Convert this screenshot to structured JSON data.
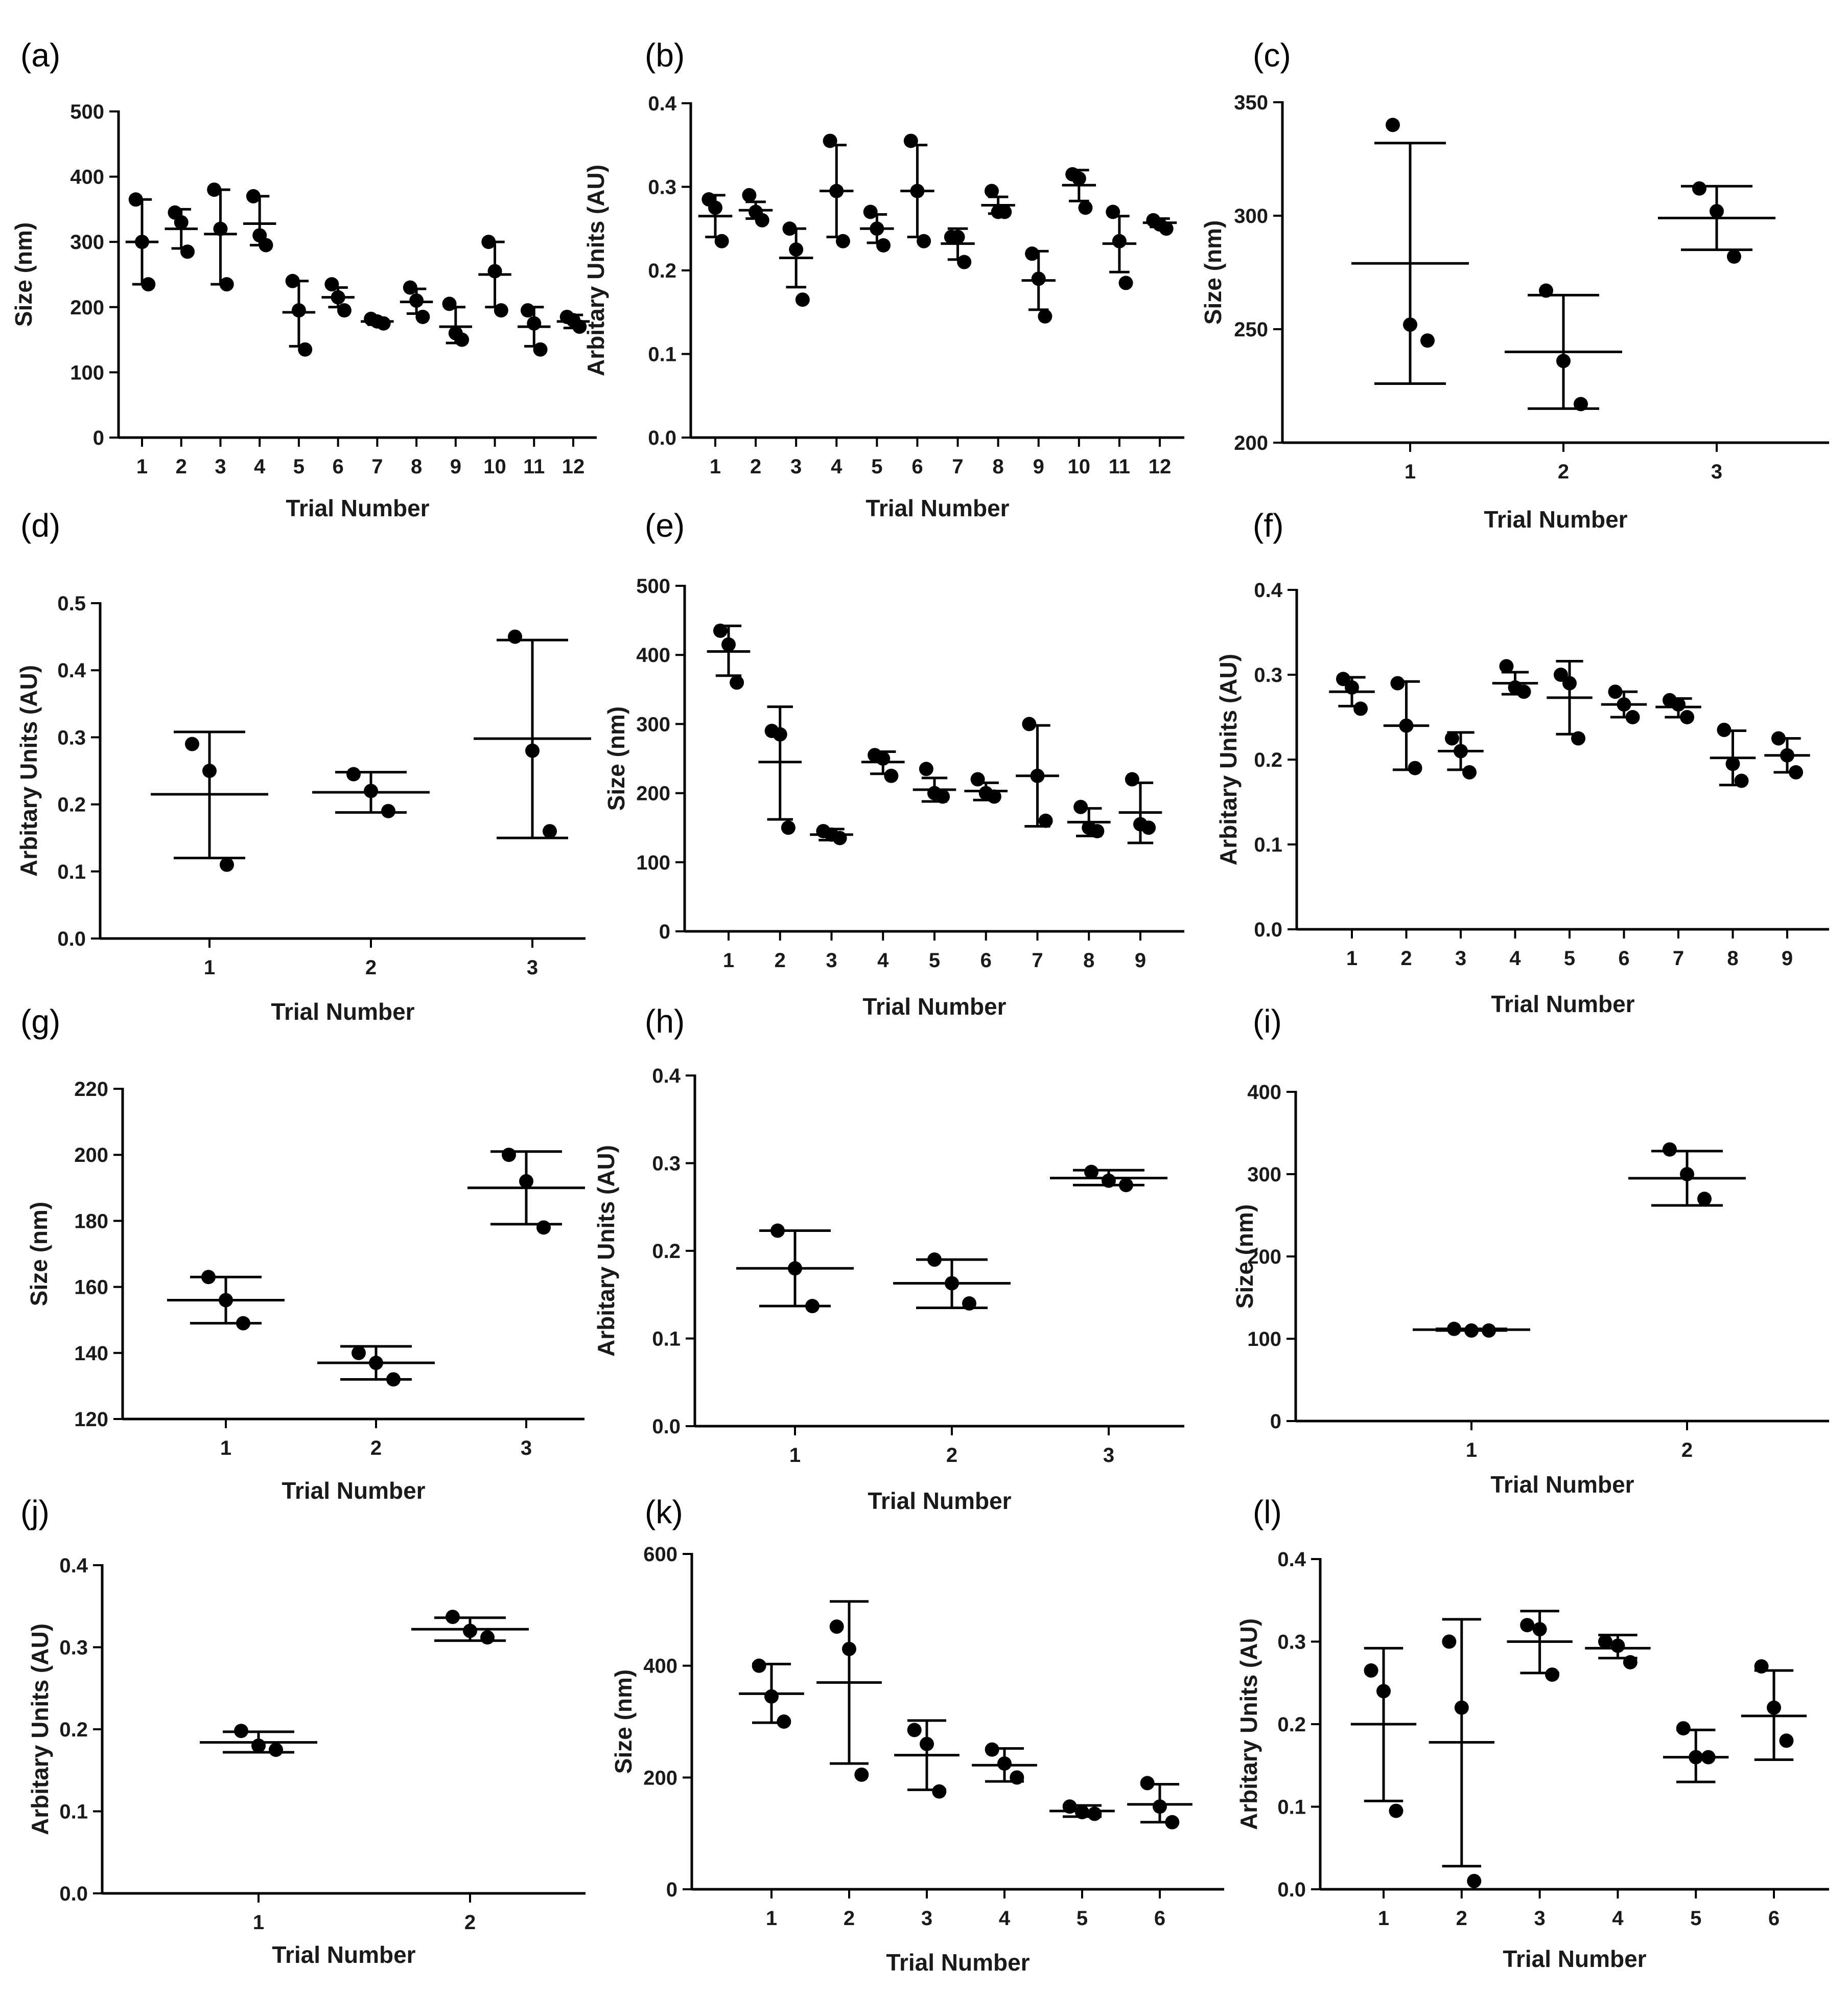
{
  "figure": {
    "background": "#ffffff",
    "ink_color": "#000000",
    "x_axis_title": "Trial Number"
  },
  "chart_data": [
    {
      "panel": "(a)",
      "type": "scatter",
      "xlabel": "Trial Number",
      "ylabel": "Size (nm)",
      "ylim": [
        0,
        500
      ],
      "yticks": [
        0,
        100,
        200,
        300,
        400,
        500
      ],
      "ytick_labels": [
        "0",
        "100",
        "200",
        "300",
        "400",
        "500"
      ],
      "categories": [
        "1",
        "2",
        "3",
        "4",
        "5",
        "6",
        "7",
        "8",
        "9",
        "10",
        "11",
        "12"
      ],
      "points": [
        [
          365,
          300,
          235
        ],
        [
          345,
          330,
          285
        ],
        [
          380,
          320,
          235
        ],
        [
          370,
          310,
          295
        ],
        [
          240,
          195,
          135
        ],
        [
          235,
          215,
          195
        ],
        [
          182,
          178,
          175
        ],
        [
          230,
          210,
          185
        ],
        [
          205,
          160,
          150
        ],
        [
          300,
          255,
          195
        ],
        [
          195,
          175,
          135
        ],
        [
          185,
          180,
          170
        ]
      ],
      "mean": [
        300,
        320,
        312,
        328,
        192,
        215,
        178,
        208,
        170,
        250,
        170,
        178
      ],
      "err_low": [
        235,
        290,
        235,
        295,
        140,
        200,
        173,
        190,
        145,
        200,
        140,
        168
      ],
      "err_high": [
        365,
        350,
        380,
        370,
        240,
        230,
        183,
        228,
        200,
        300,
        200,
        188
      ]
    },
    {
      "panel": "(b)",
      "type": "scatter",
      "xlabel": "Trial Number",
      "ylabel": "Arbitary Units (AU)",
      "ylim": [
        0,
        0.4
      ],
      "yticks": [
        0,
        0.1,
        0.2,
        0.3,
        0.4
      ],
      "ytick_labels": [
        "0.0",
        "0.1",
        "0.2",
        "0.3",
        "0.4"
      ],
      "categories": [
        "1",
        "2",
        "3",
        "4",
        "5",
        "6",
        "7",
        "8",
        "9",
        "10",
        "11",
        "12"
      ],
      "points": [
        [
          0.285,
          0.275,
          0.235
        ],
        [
          0.29,
          0.27,
          0.26
        ],
        [
          0.25,
          0.225,
          0.165
        ],
        [
          0.355,
          0.295,
          0.235
        ],
        [
          0.27,
          0.25,
          0.23
        ],
        [
          0.355,
          0.295,
          0.235
        ],
        [
          0.24,
          0.24,
          0.21
        ],
        [
          0.295,
          0.27,
          0.27
        ],
        [
          0.22,
          0.19,
          0.145
        ],
        [
          0.315,
          0.31,
          0.275
        ],
        [
          0.27,
          0.235,
          0.185
        ],
        [
          0.26,
          0.255,
          0.25
        ]
      ],
      "mean": [
        0.265,
        0.272,
        0.215,
        0.295,
        0.25,
        0.295,
        0.232,
        0.278,
        0.188,
        0.302,
        0.232,
        0.257
      ],
      "err_low": [
        0.24,
        0.262,
        0.18,
        0.24,
        0.233,
        0.24,
        0.213,
        0.268,
        0.153,
        0.283,
        0.198,
        0.252
      ],
      "err_high": [
        0.29,
        0.282,
        0.25,
        0.35,
        0.267,
        0.35,
        0.25,
        0.288,
        0.223,
        0.32,
        0.265,
        0.262
      ]
    },
    {
      "panel": "(c)",
      "type": "scatter",
      "xlabel": "Trial Number",
      "ylabel": "Size (nm)",
      "ylim": [
        200,
        350
      ],
      "yticks": [
        200,
        250,
        300,
        350
      ],
      "ytick_labels": [
        "200",
        "250",
        "300",
        "350"
      ],
      "categories": [
        "1",
        "2",
        "3"
      ],
      "points": [
        [
          340,
          252,
          245
        ],
        [
          267,
          236,
          217
        ],
        [
          312,
          302,
          282
        ]
      ],
      "mean": [
        279,
        240,
        299
      ],
      "err_low": [
        226,
        215,
        285
      ],
      "err_high": [
        332,
        265,
        313
      ]
    },
    {
      "panel": "(d)",
      "type": "scatter",
      "xlabel": "Trial Number",
      "ylabel": "Arbitary Units (AU)",
      "ylim": [
        0,
        0.5
      ],
      "yticks": [
        0,
        0.1,
        0.2,
        0.3,
        0.4,
        0.5
      ],
      "ytick_labels": [
        "0.0",
        "0.1",
        "0.2",
        "0.3",
        "0.4",
        "0.5"
      ],
      "categories": [
        "1",
        "2",
        "3"
      ],
      "points": [
        [
          0.29,
          0.25,
          0.11
        ],
        [
          0.245,
          0.22,
          0.19
        ],
        [
          0.45,
          0.28,
          0.16
        ]
      ],
      "mean": [
        0.215,
        0.218,
        0.298
      ],
      "err_low": [
        0.12,
        0.188,
        0.15
      ],
      "err_high": [
        0.308,
        0.248,
        0.445
      ]
    },
    {
      "panel": "(e)",
      "type": "scatter",
      "xlabel": "Trial Number",
      "ylabel": "Size (nm)",
      "ylim": [
        0,
        500
      ],
      "yticks": [
        0,
        100,
        200,
        300,
        400,
        500
      ],
      "ytick_labels": [
        "0",
        "100",
        "200",
        "300",
        "400",
        "500"
      ],
      "categories": [
        "1",
        "2",
        "3",
        "4",
        "5",
        "6",
        "7",
        "8",
        "9"
      ],
      "points": [
        [
          435,
          415,
          360
        ],
        [
          290,
          285,
          150
        ],
        [
          145,
          140,
          135
        ],
        [
          255,
          250,
          225
        ],
        [
          235,
          200,
          195
        ],
        [
          220,
          200,
          195
        ],
        [
          300,
          225,
          160
        ],
        [
          180,
          150,
          145
        ],
        [
          220,
          155,
          150
        ]
      ],
      "mean": [
        405,
        245,
        140,
        245,
        205,
        203,
        225,
        158,
        172
      ],
      "err_low": [
        370,
        162,
        132,
        228,
        188,
        190,
        152,
        138,
        128
      ],
      "err_high": [
        442,
        325,
        148,
        260,
        222,
        215,
        298,
        178,
        215
      ]
    },
    {
      "panel": "(f)",
      "type": "scatter",
      "xlabel": "Trial Number",
      "ylabel": "Arbitary Units (AU)",
      "ylim": [
        0,
        0.4
      ],
      "yticks": [
        0,
        0.1,
        0.2,
        0.3,
        0.4
      ],
      "ytick_labels": [
        "0.0",
        "0.1",
        "0.2",
        "0.3",
        "0.4"
      ],
      "categories": [
        "1",
        "2",
        "3",
        "4",
        "5",
        "6",
        "7",
        "8",
        "9"
      ],
      "points": [
        [
          0.295,
          0.285,
          0.26
        ],
        [
          0.29,
          0.24,
          0.19
        ],
        [
          0.225,
          0.21,
          0.185
        ],
        [
          0.31,
          0.285,
          0.28
        ],
        [
          0.3,
          0.29,
          0.225
        ],
        [
          0.28,
          0.265,
          0.25
        ],
        [
          0.27,
          0.265,
          0.25
        ],
        [
          0.235,
          0.195,
          0.175
        ],
        [
          0.225,
          0.205,
          0.185
        ]
      ],
      "mean": [
        0.28,
        0.24,
        0.21,
        0.29,
        0.273,
        0.265,
        0.262,
        0.202,
        0.205
      ],
      "err_low": [
        0.263,
        0.188,
        0.188,
        0.277,
        0.23,
        0.25,
        0.25,
        0.17,
        0.185
      ],
      "err_high": [
        0.297,
        0.292,
        0.232,
        0.303,
        0.316,
        0.28,
        0.272,
        0.234,
        0.225
      ]
    },
    {
      "panel": "(g)",
      "type": "scatter",
      "xlabel": "Trial Number",
      "ylabel": "Size (nm)",
      "ylim": [
        120,
        220
      ],
      "yticks": [
        120,
        140,
        160,
        180,
        200,
        220
      ],
      "ytick_labels": [
        "120",
        "140",
        "160",
        "180",
        "200",
        "220"
      ],
      "categories": [
        "1",
        "2",
        "3"
      ],
      "points": [
        [
          163,
          156,
          149
        ],
        [
          140,
          137,
          132
        ],
        [
          200,
          192,
          178
        ]
      ],
      "mean": [
        156,
        137,
        190
      ],
      "err_low": [
        149,
        132,
        179
      ],
      "err_high": [
        163,
        142,
        201
      ]
    },
    {
      "panel": "(h)",
      "type": "scatter",
      "xlabel": "Trial Number",
      "ylabel": "Arbitary Units (AU)",
      "ylim": [
        0,
        0.4
      ],
      "yticks": [
        0,
        0.1,
        0.2,
        0.3,
        0.4
      ],
      "ytick_labels": [
        "0.0",
        "0.1",
        "0.2",
        "0.3",
        "0.4"
      ],
      "categories": [
        "1",
        "2",
        "3"
      ],
      "points": [
        [
          0.223,
          0.18,
          0.137
        ],
        [
          0.19,
          0.163,
          0.14
        ],
        [
          0.29,
          0.28,
          0.275
        ]
      ],
      "mean": [
        0.18,
        0.163,
        0.283
      ],
      "err_low": [
        0.137,
        0.135,
        0.275
      ],
      "err_high": [
        0.223,
        0.19,
        0.292
      ]
    },
    {
      "panel": "(i)",
      "type": "scatter",
      "xlabel": "Trial Number",
      "ylabel": "Size (nm)",
      "ylim": [
        0,
        400
      ],
      "yticks": [
        0,
        100,
        200,
        300,
        400
      ],
      "ytick_labels": [
        "0",
        "100",
        "200",
        "300",
        "400"
      ],
      "categories": [
        "1",
        "2"
      ],
      "points": [
        [
          112,
          110,
          110
        ],
        [
          330,
          300,
          270
        ]
      ],
      "mean": [
        111,
        295
      ],
      "err_low": [
        110,
        262
      ],
      "err_high": [
        112,
        328
      ]
    },
    {
      "panel": "(j)",
      "type": "scatter",
      "xlabel": "Trial Number",
      "ylabel": "Arbitary Units (AU)",
      "ylim": [
        0,
        0.4
      ],
      "yticks": [
        0,
        0.1,
        0.2,
        0.3,
        0.4
      ],
      "ytick_labels": [
        "0.0",
        "0.1",
        "0.2",
        "0.3",
        "0.4"
      ],
      "categories": [
        "1",
        "2"
      ],
      "points": [
        [
          0.198,
          0.18,
          0.175
        ],
        [
          0.337,
          0.32,
          0.312
        ]
      ],
      "mean": [
        0.184,
        0.322
      ],
      "err_low": [
        0.172,
        0.308
      ],
      "err_high": [
        0.197,
        0.336
      ]
    },
    {
      "panel": "(k)",
      "type": "scatter",
      "xlabel": "Trial Number",
      "ylabel": "Size (nm)",
      "ylim": [
        0,
        600
      ],
      "yticks": [
        0,
        200,
        400,
        600
      ],
      "ytick_labels": [
        "0",
        "200",
        "400",
        "600"
      ],
      "categories": [
        "1",
        "2",
        "3",
        "4",
        "5",
        "6"
      ],
      "points": [
        [
          400,
          345,
          300
        ],
        [
          470,
          430,
          205
        ],
        [
          285,
          260,
          175
        ],
        [
          250,
          225,
          200
        ],
        [
          148,
          138,
          135
        ],
        [
          190,
          148,
          120
        ]
      ],
      "mean": [
        350,
        370,
        240,
        222,
        140,
        152
      ],
      "err_low": [
        298,
        225,
        178,
        193,
        130,
        120
      ],
      "err_high": [
        403,
        515,
        302,
        252,
        150,
        188
      ]
    },
    {
      "panel": "(l)",
      "type": "scatter",
      "xlabel": "Trial Number",
      "ylabel": "Arbitary Units (AU)",
      "ylim": [
        0,
        0.4
      ],
      "yticks": [
        0,
        0.1,
        0.2,
        0.3,
        0.4
      ],
      "ytick_labels": [
        "0.0",
        "0.1",
        "0.2",
        "0.3",
        "0.4"
      ],
      "categories": [
        "1",
        "2",
        "3",
        "4",
        "5",
        "6"
      ],
      "points": [
        [
          0.265,
          0.24,
          0.095
        ],
        [
          0.3,
          0.22,
          0.01
        ],
        [
          0.32,
          0.315,
          0.26
        ],
        [
          0.3,
          0.295,
          0.275
        ],
        [
          0.195,
          0.16,
          0.16
        ],
        [
          0.27,
          0.22,
          0.18
        ]
      ],
      "mean": [
        0.2,
        0.178,
        0.3,
        0.292,
        0.16,
        0.21
      ],
      "err_low": [
        0.107,
        0.028,
        0.262,
        0.28,
        0.13,
        0.157
      ],
      "err_high": [
        0.292,
        0.327,
        0.337,
        0.308,
        0.193,
        0.265
      ]
    }
  ]
}
